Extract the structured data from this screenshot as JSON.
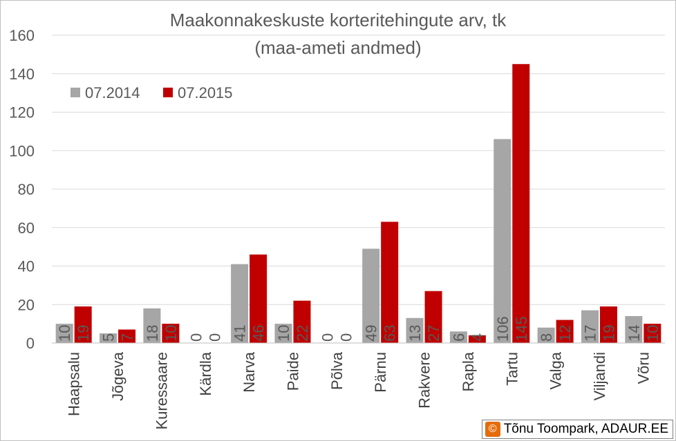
{
  "chart_data": {
    "type": "bar",
    "title": "Maakonnakeskuste korteritehingute arv, tk",
    "subtitle": "(maa-ameti andmed)",
    "xlabel": "",
    "ylabel": "",
    "ylim": [
      0,
      160
    ],
    "yticks": [
      0,
      20,
      40,
      60,
      80,
      100,
      120,
      140,
      160
    ],
    "grid": true,
    "legend_position": "top-left",
    "categories": [
      "Haapsalu",
      "Jõgeva",
      "Kuressaare",
      "Kärdla",
      "Narva",
      "Paide",
      "Põlva",
      "Pärnu",
      "Rakvere",
      "Rapla",
      "Tartu",
      "Valga",
      "Viljandi",
      "Võru"
    ],
    "series": [
      {
        "name": "07.2014",
        "color": "#a6a6a6",
        "values": [
          10,
          5,
          18,
          0,
          41,
          10,
          0,
          49,
          13,
          6,
          106,
          8,
          17,
          14
        ]
      },
      {
        "name": "07.2015",
        "color": "#c00000",
        "values": [
          19,
          7,
          10,
          0,
          46,
          22,
          0,
          63,
          27,
          4,
          145,
          12,
          19,
          10
        ]
      }
    ]
  },
  "credit": {
    "symbol": "©",
    "text": "Tõnu Toompark, ADAUR.EE",
    "icon_color": "#e46c0a"
  }
}
